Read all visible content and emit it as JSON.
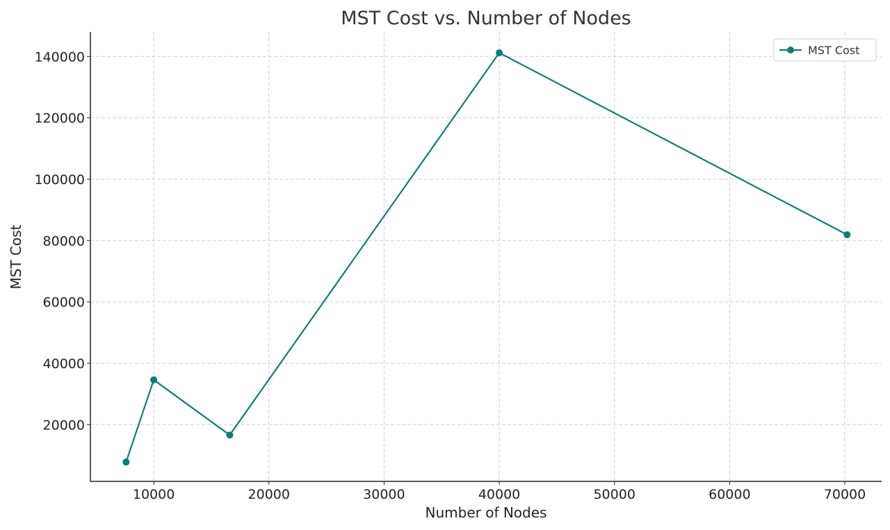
{
  "chart_data": {
    "type": "line",
    "title": "MST Cost vs. Number of Nodes",
    "xlabel": "Number of Nodes",
    "ylabel": "MST Cost",
    "xlim": [
      4500,
      73200
    ],
    "ylim": [
      1500,
      148000
    ],
    "xticks": [
      10000,
      20000,
      30000,
      40000,
      50000,
      60000,
      70000
    ],
    "yticks": [
      20000,
      40000,
      60000,
      80000,
      100000,
      120000,
      140000
    ],
    "grid": true,
    "legend_position": "top-right",
    "series": [
      {
        "name": "MST Cost",
        "color": "#0f7b7b",
        "marker": "circle",
        "x": [
          7600,
          10000,
          16600,
          40000,
          70200
        ],
        "y": [
          7800,
          34600,
          16600,
          141200,
          81900
        ]
      }
    ]
  }
}
